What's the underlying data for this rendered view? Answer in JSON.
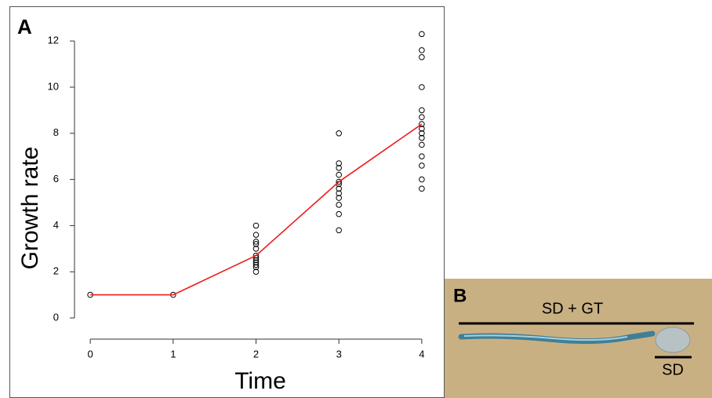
{
  "chart_data": {
    "type": "scatter",
    "panel_label": "A",
    "xlabel": "Time",
    "ylabel": "Growth rate",
    "xlim": [
      -0.2,
      4.2
    ],
    "xticks": [
      0,
      1,
      2,
      3,
      4
    ],
    "ylim": [
      -0.5,
      12.5
    ],
    "yticks": [
      0,
      2,
      4,
      6,
      8,
      10,
      12
    ],
    "series": [
      {
        "type": "scatter",
        "color": "#000000",
        "x": [
          0,
          1,
          2,
          2,
          2,
          2,
          2,
          2,
          2,
          2,
          2,
          2,
          2,
          2,
          3,
          3,
          3,
          3,
          3,
          3,
          3,
          3,
          3,
          3,
          3,
          3,
          4,
          4,
          4,
          4,
          4,
          4,
          4,
          4,
          4,
          4,
          4,
          4,
          4,
          4,
          4
        ],
        "values": [
          1,
          1,
          4.0,
          3.6,
          3.3,
          3.2,
          3.0,
          2.7,
          2.6,
          2.5,
          2.4,
          2.3,
          2.2,
          2.0,
          8.0,
          6.7,
          6.5,
          6.2,
          5.9,
          5.8,
          5.6,
          5.4,
          5.2,
          4.9,
          4.5,
          3.8,
          12.3,
          11.6,
          11.3,
          10.0,
          9.0,
          8.7,
          8.4,
          8.2,
          8.0,
          7.8,
          7.5,
          7.0,
          6.6,
          6.0,
          5.6
        ]
      },
      {
        "type": "line",
        "color": "#ee1c1c",
        "x": [
          0,
          1,
          2,
          3,
          4
        ],
        "values": [
          1,
          1,
          2.7,
          5.9,
          8.4
        ]
      }
    ]
  },
  "panel_b": {
    "label": "B",
    "top_label": "SD + GT",
    "bottom_label": "SD"
  }
}
